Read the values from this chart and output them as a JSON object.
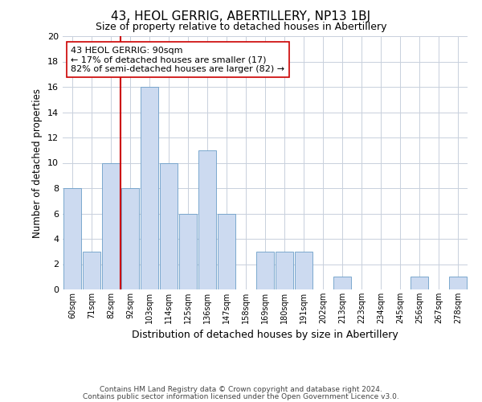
{
  "title": "43, HEOL GERRIG, ABERTILLERY, NP13 1BJ",
  "subtitle": "Size of property relative to detached houses in Abertillery",
  "xlabel": "Distribution of detached houses by size in Abertillery",
  "ylabel": "Number of detached properties",
  "bar_labels": [
    "60sqm",
    "71sqm",
    "82sqm",
    "92sqm",
    "103sqm",
    "114sqm",
    "125sqm",
    "136sqm",
    "147sqm",
    "158sqm",
    "169sqm",
    "180sqm",
    "191sqm",
    "202sqm",
    "213sqm",
    "223sqm",
    "234sqm",
    "245sqm",
    "256sqm",
    "267sqm",
    "278sqm"
  ],
  "bar_values": [
    8,
    3,
    10,
    8,
    16,
    10,
    6,
    11,
    6,
    0,
    3,
    3,
    3,
    0,
    1,
    0,
    0,
    0,
    1,
    0,
    1
  ],
  "bar_color": "#ccdaf0",
  "bar_edge_color": "#6b9ec8",
  "vline_color": "#cc0000",
  "vline_pos": 2.5,
  "ylim": [
    0,
    20
  ],
  "yticks": [
    0,
    2,
    4,
    6,
    8,
    10,
    12,
    14,
    16,
    18,
    20
  ],
  "annotation_title": "43 HEOL GERRIG: 90sqm",
  "annotation_line1": "← 17% of detached houses are smaller (17)",
  "annotation_line2": "82% of semi-detached houses are larger (82) →",
  "annotation_box_color": "#ffffff",
  "annotation_box_edge": "#cc0000",
  "footer_line1": "Contains HM Land Registry data © Crown copyright and database right 2024.",
  "footer_line2": "Contains public sector information licensed under the Open Government Licence v3.0.",
  "background_color": "#ffffff",
  "grid_color": "#c8d0dc"
}
